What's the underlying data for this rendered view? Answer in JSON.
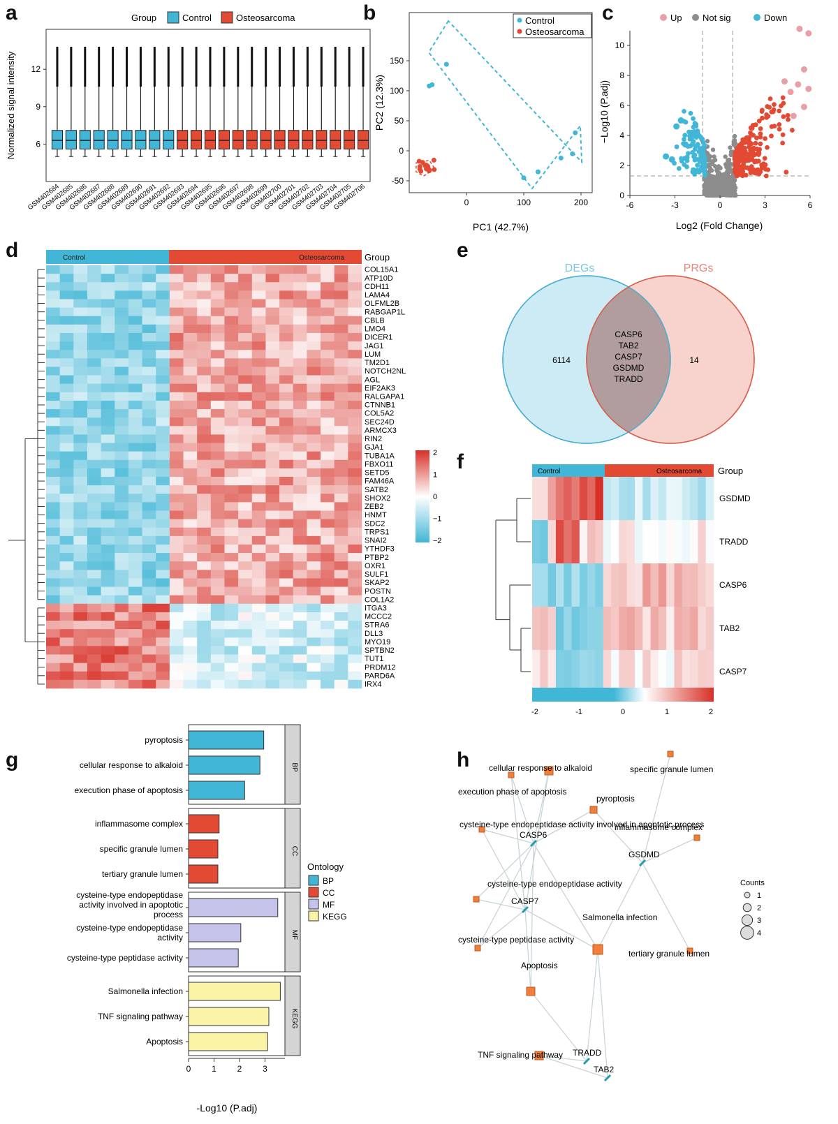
{
  "panel_letters": [
    "a",
    "b",
    "c",
    "d",
    "e",
    "f",
    "g",
    "h"
  ],
  "colors": {
    "control": "#41b6d6",
    "osteo": "#e34a33",
    "notsig": "#8c8c8c",
    "up": "#e8a0a8",
    "mf": "#c5c3ea",
    "kegg": "#fbf4a6",
    "strip": "#d4d4d4"
  },
  "panel_a": {
    "legend_title": "Group",
    "legend_items": [
      "Control",
      "Osteosarcoma"
    ],
    "ylabel": "Normalized signal intensity",
    "yticks": [
      "6",
      "9",
      "12"
    ],
    "samples": [
      "GSM402684",
      "GSM402685",
      "GSM402686",
      "GSM402687",
      "GSM402688",
      "GSM402689",
      "GSM402690",
      "GSM402691",
      "GSM402692",
      "GSM402693",
      "GSM402694",
      "GSM402695",
      "GSM402696",
      "GSM402697",
      "GSM402698",
      "GSM402699",
      "GSM402700",
      "GSM402701",
      "GSM402702",
      "GSM402703",
      "GSM402704",
      "GSM402705",
      "GSM402706"
    ],
    "n_control": 9
  },
  "panel_b": {
    "legend_items": [
      "Control",
      "Osteosarcoma"
    ],
    "xlabel": "PC1 (42.7%)",
    "ylabel": "PC2 (12.3%)",
    "xticks": [
      "0",
      "100",
      "200"
    ],
    "yticks": [
      "-50",
      "0",
      "50",
      "100",
      "150"
    ]
  },
  "panel_c": {
    "legend_items": [
      "Up",
      "Not sig",
      "Down"
    ],
    "xlabel": "Log2 (Fold Change)",
    "ylabel": "−Log10 (P.adj)",
    "xticks": [
      "-6",
      "-3",
      "0",
      "3",
      "6"
    ],
    "yticks": [
      "0",
      "2",
      "4",
      "6",
      "8",
      "10"
    ]
  },
  "panel_d": {
    "group_label": "Group",
    "strip_labels": [
      "Control",
      "Osteosarcoma"
    ],
    "genes": [
      "COL15A1",
      "ATP10D",
      "CDH11",
      "LAMA4",
      "OLFML2B",
      "RABGAP1L",
      "CBLB",
      "LMO4",
      "DICER1",
      "JAG1",
      "LUM",
      "TM2D1",
      "NOTCH2NL",
      "AGL",
      "EIF2AK3",
      "RALGAPA1",
      "CTNNB1",
      "COL5A2",
      "SEC24D",
      "ARMCX3",
      "RIN2",
      "GJA1",
      "TUBA1A",
      "FBXO11",
      "SETD5",
      "FAM46A",
      "SATB2",
      "SHOX2",
      "ZEB2",
      "HNMT",
      "SDC2",
      "TRPS1",
      "SNAI2",
      "YTHDF3",
      "PTBP2",
      "OXR1",
      "SULF1",
      "SKAP2",
      "POSTN",
      "COL1A2",
      "ITGA3",
      "MCCC2",
      "STRA6",
      "DLL3",
      "MYO19",
      "SPTBN2",
      "TUT1",
      "PRDM12",
      "PARD6A",
      "IRX4"
    ],
    "scale_ticks": [
      "2",
      "1",
      "0",
      "−1",
      "−2"
    ]
  },
  "panel_e": {
    "set1": "DEGs",
    "set2": "PRGs",
    "left_count": "6114",
    "right_count": "14",
    "overlap": [
      "CASP6",
      "TAB2",
      "CASP7",
      "GSDMD",
      "TRADD"
    ]
  },
  "panel_f": {
    "group_label": "Group",
    "strip_labels": [
      "Control",
      "Osteosarcoma"
    ],
    "genes": [
      "GSDMD",
      "TRADD",
      "CASP6",
      "TAB2",
      "CASP7"
    ],
    "scale_ticks": [
      "-2",
      "-1",
      "0",
      "1",
      "2"
    ]
  },
  "panel_g": {
    "groups": [
      {
        "label": "BP",
        "terms": [
          {
            "t": "pyroptosis",
            "v": 2.95
          },
          {
            "t": "cellular response to alkaloid",
            "v": 2.8
          },
          {
            "t": "execution phase of apoptosis",
            "v": 2.2
          }
        ]
      },
      {
        "label": "CC",
        "terms": [
          {
            "t": "inflammasome complex",
            "v": 1.2
          },
          {
            "t": "specific granule lumen",
            "v": 1.15
          },
          {
            "t": "tertiary granule lumen",
            "v": 1.15
          }
        ]
      },
      {
        "label": "MF",
        "terms": [
          {
            "t": "cysteine-type endopeptidase activity involved in apoptotic process",
            "v": 3.5
          },
          {
            "t": "cysteine-type endopeptidase activity",
            "v": 2.05
          },
          {
            "t": "cysteine-type peptidase activity",
            "v": 1.95
          }
        ]
      },
      {
        "label": "KEGG",
        "terms": [
          {
            "t": "Salmonella infection",
            "v": 3.6
          },
          {
            "t": "TNF signaling pathway",
            "v": 3.15
          },
          {
            "t": "Apoptosis",
            "v": 3.1
          }
        ]
      }
    ],
    "xticks": [
      "0",
      "1",
      "2",
      "3"
    ],
    "xlabel": "-Log10 (P.adj)",
    "legend_title": "Ontology",
    "legend_items": [
      "BP",
      "CC",
      "MF",
      "KEGG"
    ]
  },
  "panel_h": {
    "legend_title": "Counts",
    "legend_items": [
      "1",
      "2",
      "3",
      "4"
    ],
    "genes": [
      "CASP6",
      "CASP7",
      "GSDMD",
      "TRADD",
      "TAB2"
    ],
    "terms": [
      "cellular response to alkaloid",
      "specific granule lumen",
      "execution phase of apoptosis",
      "pyroptosis",
      "cysteine-type endopeptidase activity involved in apoptotic process",
      "inflammasome complex",
      "cysteine-type endopeptidase activity",
      "Salmonella infection",
      "cysteine-type peptidase activity",
      "tertiary granule lumen",
      "Apoptosis",
      "TNF signaling pathway"
    ]
  }
}
